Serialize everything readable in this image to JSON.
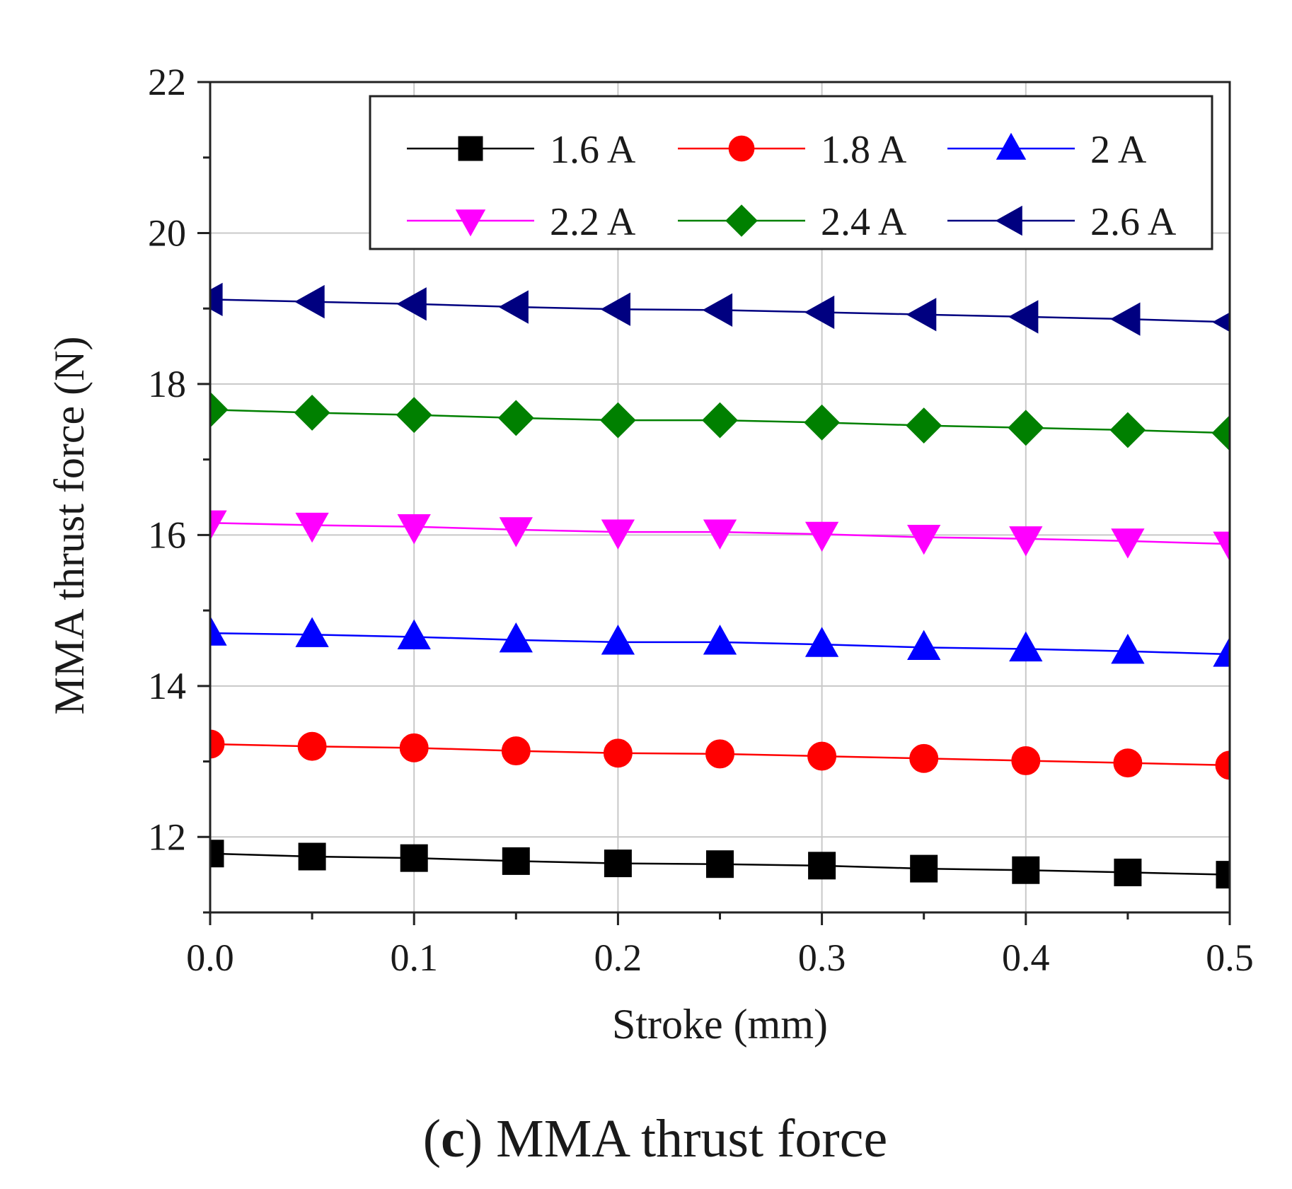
{
  "chart_data": {
    "type": "line",
    "title": "",
    "xlabel": "Stroke (mm)",
    "ylabel": "MMA thrust force (N)",
    "xlim": [
      0.0,
      0.5
    ],
    "ylim": [
      11.0,
      22.0
    ],
    "x_ticks": [
      0.0,
      0.1,
      0.2,
      0.3,
      0.4,
      0.5
    ],
    "x_tick_labels": [
      "0.0",
      "0.1",
      "0.2",
      "0.3",
      "0.4",
      "0.5"
    ],
    "y_ticks": [
      12,
      14,
      16,
      18,
      20,
      22
    ],
    "y_tick_labels": [
      "12",
      "14",
      "16",
      "18",
      "20",
      "22"
    ],
    "grid": true,
    "legend_position": "top-right",
    "x": [
      0.0,
      0.05,
      0.1,
      0.15,
      0.2,
      0.25,
      0.3,
      0.35,
      0.4,
      0.45,
      0.5
    ],
    "series": [
      {
        "name": "1.6 A",
        "color": "#000000",
        "marker": "square",
        "values": [
          11.78,
          11.74,
          11.72,
          11.68,
          11.65,
          11.64,
          11.62,
          11.58,
          11.56,
          11.53,
          11.5
        ]
      },
      {
        "name": "1.8 A",
        "color": "#ff0000",
        "marker": "circle",
        "values": [
          13.23,
          13.2,
          13.18,
          13.14,
          13.11,
          13.1,
          13.07,
          13.04,
          13.01,
          12.98,
          12.95
        ]
      },
      {
        "name": "2 A",
        "color": "#0000ff",
        "marker": "triangle-up",
        "values": [
          14.7,
          14.68,
          14.65,
          14.61,
          14.58,
          14.58,
          14.55,
          14.51,
          14.49,
          14.46,
          14.42
        ]
      },
      {
        "name": "2.2 A",
        "color": "#ff00ff",
        "marker": "triangle-down",
        "values": [
          16.16,
          16.13,
          16.11,
          16.07,
          16.04,
          16.04,
          16.01,
          15.97,
          15.95,
          15.92,
          15.88
        ]
      },
      {
        "name": "2.4 A",
        "color": "#008000",
        "marker": "diamond",
        "values": [
          17.66,
          17.62,
          17.59,
          17.55,
          17.52,
          17.52,
          17.49,
          17.45,
          17.42,
          17.39,
          17.35
        ]
      },
      {
        "name": "2.6 A",
        "color": "#000080",
        "marker": "triangle-left",
        "values": [
          19.12,
          19.09,
          19.06,
          19.02,
          18.99,
          18.98,
          18.95,
          18.92,
          18.89,
          18.86,
          18.82
        ]
      }
    ]
  },
  "caption": {
    "open_paren": "(",
    "letter": "c",
    "rest": ") MMA thrust force"
  }
}
